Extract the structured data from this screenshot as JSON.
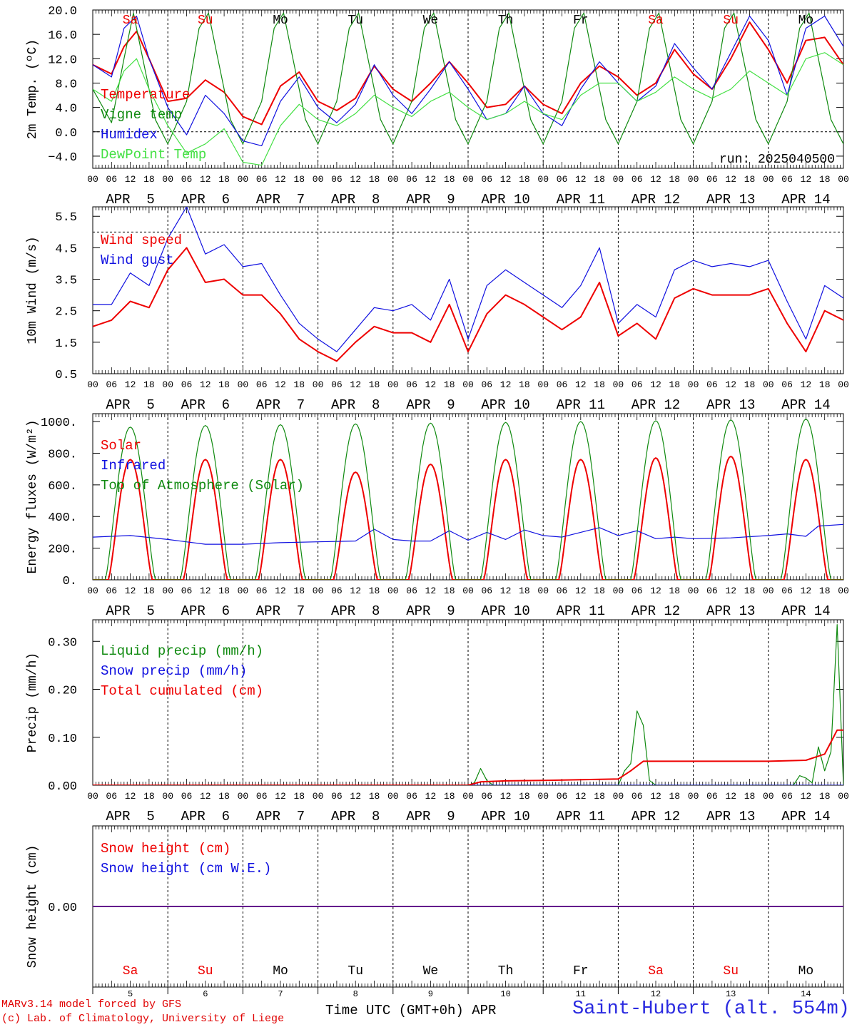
{
  "colors": {
    "red": "#ee0000",
    "dark_green": "#108a10",
    "blue": "#1010e0",
    "light_green": "#44e044",
    "black": "#000000",
    "weekend": "#ee0000",
    "station": "#2a2ae0"
  },
  "days": [
    {
      "dow": "Sa",
      "date_label": "APR  5",
      "num": "5",
      "weekend": true
    },
    {
      "dow": "Su",
      "date_label": "APR  6",
      "num": "6",
      "weekend": true
    },
    {
      "dow": "Mo",
      "date_label": "APR  7",
      "num": "7",
      "weekend": false
    },
    {
      "dow": "Tu",
      "date_label": "APR  8",
      "num": "8",
      "weekend": false
    },
    {
      "dow": "We",
      "date_label": "APR  9",
      "num": "9",
      "weekend": false
    },
    {
      "dow": "Th",
      "date_label": "APR 10",
      "num": "10",
      "weekend": false
    },
    {
      "dow": "Fr",
      "date_label": "APR 11",
      "num": "11",
      "weekend": false
    },
    {
      "dow": "Sa",
      "date_label": "APR 12",
      "num": "12",
      "weekend": true
    },
    {
      "dow": "Su",
      "date_label": "APR 13",
      "num": "13",
      "weekend": true
    },
    {
      "dow": "Mo",
      "date_label": "APR 14",
      "num": "14",
      "weekend": false
    }
  ],
  "hour_ticks": [
    "00",
    "06",
    "12",
    "18"
  ],
  "hour_tick_last": "00",
  "footer": {
    "credit_line1": "MARv3.14 model forced by GFS",
    "credit_line2": "(c) Lab. of Climatology, University of Liege",
    "x_axis_title": "Time UTC (GMT+0h) APR",
    "station": "Saint-Hubert (alt. 554m)"
  },
  "chart_data": [
    {
      "type": "line",
      "id": "temperature",
      "ylabel": "2m Temp. (ºC)",
      "ylim": [
        -6,
        20
      ],
      "yticks": [
        20,
        16,
        12,
        8,
        4,
        0,
        -4
      ],
      "ytick_labels": [
        "20.0",
        "16.0",
        "12.0",
        "8.0",
        "4.0",
        "0.0",
        "−4.0"
      ],
      "reference_lines": [
        0
      ],
      "annotation": "run: 2025040500",
      "x_unit": "hours since APR 5 00 UTC",
      "series": [
        {
          "name": "Temperature",
          "color": "red",
          "x": [
            0,
            6,
            10,
            14,
            18,
            24,
            30,
            36,
            42,
            48,
            54,
            60,
            66,
            72,
            78,
            84,
            90,
            96,
            102,
            108,
            114,
            120,
            126,
            132,
            138,
            144,
            150,
            156,
            162,
            168,
            174,
            180,
            186,
            192,
            198,
            204,
            210,
            216,
            222,
            228,
            234,
            240
          ],
          "y": [
            11,
            9.5,
            14,
            16.5,
            12,
            5,
            5.5,
            8.5,
            6.5,
            2.5,
            1.2,
            7.5,
            9.8,
            5,
            3.5,
            5.5,
            10.8,
            7,
            5,
            8,
            11.5,
            8,
            4,
            4.5,
            7.5,
            4.5,
            3,
            8,
            10.8,
            9,
            6,
            8,
            13.5,
            9.5,
            7,
            12,
            18,
            13.5,
            8,
            15,
            15.5,
            11
          ]
        },
        {
          "name": "Vigne temp",
          "color": "dark_green",
          "x": [
            0,
            6,
            10,
            13,
            16,
            20,
            24,
            30,
            34,
            37,
            40,
            44,
            48,
            54,
            58,
            61,
            64,
            68,
            72,
            78,
            82,
            85,
            88,
            92,
            96,
            102,
            106,
            109,
            112,
            116,
            120,
            126,
            130,
            133,
            136,
            140,
            144,
            150,
            154,
            157,
            160,
            164,
            168,
            174,
            178,
            181,
            184,
            188,
            192,
            198,
            202,
            205,
            208,
            212,
            216,
            222,
            226,
            229,
            232,
            236,
            240
          ],
          "y": [
            7,
            1.5,
            12,
            19.5,
            12,
            2,
            -2,
            5,
            17,
            19.5,
            12,
            2,
            -2,
            5,
            17,
            19.5,
            12,
            2,
            -2,
            5,
            17,
            19.5,
            12,
            2,
            -2,
            5,
            17,
            19.5,
            12,
            2,
            -2,
            5,
            17,
            19.5,
            12,
            2,
            -2,
            5,
            17,
            19.5,
            12,
            2,
            -2,
            5,
            17,
            19.5,
            12,
            2,
            -2,
            5,
            17,
            19.5,
            12,
            2,
            -2,
            5,
            17,
            19.5,
            12,
            2,
            -2
          ]
        },
        {
          "name": "Humidex",
          "color": "blue",
          "x": [
            0,
            6,
            10,
            14,
            18,
            24,
            30,
            36,
            42,
            48,
            54,
            60,
            66,
            72,
            78,
            84,
            90,
            96,
            102,
            108,
            114,
            120,
            126,
            132,
            138,
            144,
            150,
            156,
            162,
            168,
            174,
            180,
            186,
            192,
            198,
            204,
            210,
            216,
            222,
            228,
            234,
            240
          ],
          "y": [
            11,
            9,
            17,
            19,
            12,
            4,
            -0.5,
            6,
            3,
            -1.5,
            -2.3,
            5,
            9,
            4,
            1.5,
            4.5,
            11,
            6,
            3,
            7,
            11.5,
            7,
            2,
            3,
            7.5,
            3,
            1,
            7,
            11.5,
            8,
            5,
            7.5,
            14.5,
            10.5,
            7,
            13,
            19,
            15,
            6,
            17,
            19,
            14
          ]
        },
        {
          "name": "DewPoint Temp",
          "color": "light_green",
          "x": [
            0,
            6,
            10,
            14,
            18,
            24,
            30,
            36,
            42,
            48,
            54,
            60,
            66,
            72,
            78,
            84,
            90,
            96,
            102,
            108,
            114,
            120,
            126,
            132,
            138,
            144,
            150,
            156,
            162,
            168,
            174,
            180,
            186,
            192,
            198,
            204,
            210,
            216,
            222,
            228,
            234,
            240
          ],
          "y": [
            7,
            5,
            10,
            12,
            7,
            1,
            -3.5,
            -2,
            0.5,
            -5,
            -5.5,
            1,
            4.5,
            2,
            1,
            3,
            6,
            4,
            2.5,
            5,
            6.5,
            4,
            2,
            3,
            5,
            3,
            2,
            6,
            8,
            8,
            5,
            6.5,
            9,
            7,
            5.5,
            7,
            10,
            8,
            6,
            12,
            13,
            11
          ]
        }
      ]
    },
    {
      "type": "line",
      "id": "wind",
      "ylabel": "10m Wind (m/s)",
      "ylim": [
        0.5,
        5.8
      ],
      "yticks": [
        5.5,
        4.5,
        3.5,
        2.5,
        1.5,
        0.5
      ],
      "ytick_labels": [
        "5.5",
        "4.5",
        "3.5",
        "2.5",
        "1.5",
        "0.5"
      ],
      "reference_lines": [
        5
      ],
      "x_unit": "hours since APR 5 00 UTC",
      "series": [
        {
          "name": "Wind speed",
          "color": "red",
          "x": [
            0,
            6,
            12,
            18,
            24,
            30,
            36,
            42,
            48,
            54,
            60,
            66,
            72,
            78,
            84,
            90,
            96,
            102,
            108,
            114,
            120,
            126,
            132,
            138,
            144,
            150,
            156,
            162,
            168,
            174,
            180,
            186,
            192,
            198,
            204,
            210,
            216,
            222,
            228,
            234,
            240
          ],
          "y": [
            2.0,
            2.2,
            2.8,
            2.6,
            3.8,
            4.5,
            3.4,
            3.5,
            3.0,
            3.0,
            2.4,
            1.6,
            1.2,
            0.9,
            1.5,
            2.0,
            1.8,
            1.8,
            1.5,
            2.7,
            1.2,
            2.4,
            3.0,
            2.7,
            2.3,
            1.9,
            2.3,
            3.4,
            1.7,
            2.1,
            1.6,
            2.9,
            3.2,
            3.0,
            3.0,
            3.0,
            3.2,
            2.1,
            1.2,
            2.5,
            2.2
          ]
        },
        {
          "name": "Wind gust",
          "color": "blue",
          "x": [
            0,
            6,
            12,
            18,
            24,
            30,
            36,
            42,
            48,
            54,
            60,
            66,
            72,
            78,
            84,
            90,
            96,
            102,
            108,
            114,
            120,
            126,
            132,
            138,
            144,
            150,
            156,
            162,
            168,
            174,
            180,
            186,
            192,
            198,
            204,
            210,
            216,
            222,
            228,
            234,
            240
          ],
          "y": [
            2.7,
            2.7,
            3.7,
            3.3,
            4.8,
            5.8,
            4.3,
            4.6,
            3.9,
            4.0,
            3.0,
            2.1,
            1.6,
            1.2,
            1.9,
            2.6,
            2.5,
            2.7,
            2.2,
            3.5,
            1.6,
            3.3,
            3.8,
            3.4,
            3.0,
            2.6,
            3.3,
            4.5,
            2.1,
            2.7,
            2.3,
            3.8,
            4.1,
            3.9,
            4.0,
            3.9,
            4.1,
            2.8,
            1.6,
            3.3,
            2.9
          ]
        }
      ]
    },
    {
      "type": "line",
      "id": "energy",
      "ylabel": "Energy fluxes (W/m²)",
      "ylim": [
        0,
        1050
      ],
      "yticks": [
        1000,
        800,
        600,
        400,
        200,
        0
      ],
      "ytick_labels": [
        "1000.",
        "800.",
        "600.",
        "400.",
        "200.",
        "0."
      ],
      "x_unit": "hours since APR 5 00 UTC",
      "series": [
        {
          "name": "Solar",
          "color": "red",
          "type": "diurnal",
          "peaks": [
            760,
            760,
            760,
            680,
            730,
            760,
            760,
            770,
            780,
            760
          ],
          "sunrise_hour": 5,
          "sunset_hour": 19
        },
        {
          "name": "Infrared",
          "color": "blue",
          "x": [
            0,
            12,
            24,
            36,
            48,
            60,
            72,
            84,
            90,
            96,
            102,
            108,
            114,
            120,
            126,
            132,
            138,
            144,
            150,
            156,
            162,
            168,
            174,
            180,
            186,
            192,
            204,
            216,
            222,
            228,
            232,
            240
          ],
          "y": [
            270,
            280,
            255,
            225,
            225,
            235,
            240,
            245,
            320,
            255,
            245,
            245,
            310,
            250,
            300,
            255,
            315,
            280,
            270,
            300,
            330,
            280,
            310,
            260,
            270,
            260,
            265,
            280,
            290,
            275,
            340,
            350
          ]
        },
        {
          "name": "Top of Atmosphere (Solar)",
          "color": "dark_green",
          "type": "diurnal",
          "peaks": [
            965,
            975,
            980,
            985,
            990,
            995,
            1000,
            1005,
            1010,
            1015
          ],
          "sunrise_hour": 4,
          "sunset_hour": 20
        }
      ]
    },
    {
      "type": "line",
      "id": "precip",
      "ylabel": "Precip (mm/h)",
      "ylim": [
        0,
        0.345
      ],
      "yticks": [
        0.3,
        0.2,
        0.1,
        0.0
      ],
      "ytick_labels": [
        "0.30",
        "0.20",
        "0.10",
        "0.00"
      ],
      "x_unit": "hours since APR 5 00 UTC",
      "series": [
        {
          "name": "Liquid precip (mm/h)",
          "color": "dark_green",
          "x": [
            0,
            120,
            122,
            124,
            126,
            128,
            130,
            168,
            170,
            172,
            174,
            176,
            178,
            180,
            224,
            226,
            228,
            230,
            232,
            234,
            236,
            238,
            240
          ],
          "y": [
            0,
            0,
            0.005,
            0.035,
            0.01,
            0,
            0,
            0,
            0.03,
            0.045,
            0.155,
            0.125,
            0.01,
            0,
            0,
            0.02,
            0.015,
            0.005,
            0.08,
            0.03,
            0.07,
            0.335,
            0
          ]
        },
        {
          "name": "Snow precip (mm/h)",
          "color": "blue",
          "x": [
            0,
            240
          ],
          "y": [
            0,
            0
          ]
        },
        {
          "name": "Total cumulated (cm)",
          "color": "red",
          "x": [
            0,
            120,
            124,
            132,
            144,
            168,
            172,
            176,
            216,
            228,
            234,
            236,
            238,
            240
          ],
          "y": [
            0,
            0,
            0.007,
            0.009,
            0.01,
            0.013,
            0.03,
            0.05,
            0.05,
            0.052,
            0.065,
            0.09,
            0.115,
            0.115
          ]
        }
      ]
    },
    {
      "type": "line",
      "id": "snow",
      "ylabel": "Snow height (cm)",
      "ylim": [
        -1,
        1
      ],
      "yticks": [
        0
      ],
      "ytick_labels": [
        "0.00"
      ],
      "x_unit": "hours since APR 5 00 UTC",
      "series": [
        {
          "name": "Snow height (cm)",
          "color": "red",
          "x": [
            0,
            240
          ],
          "y": [
            0,
            0
          ]
        },
        {
          "name": "Snow height (cm W.E.)",
          "color": "blue",
          "x": [
            0,
            240
          ],
          "y": [
            0,
            0
          ]
        }
      ]
    }
  ]
}
